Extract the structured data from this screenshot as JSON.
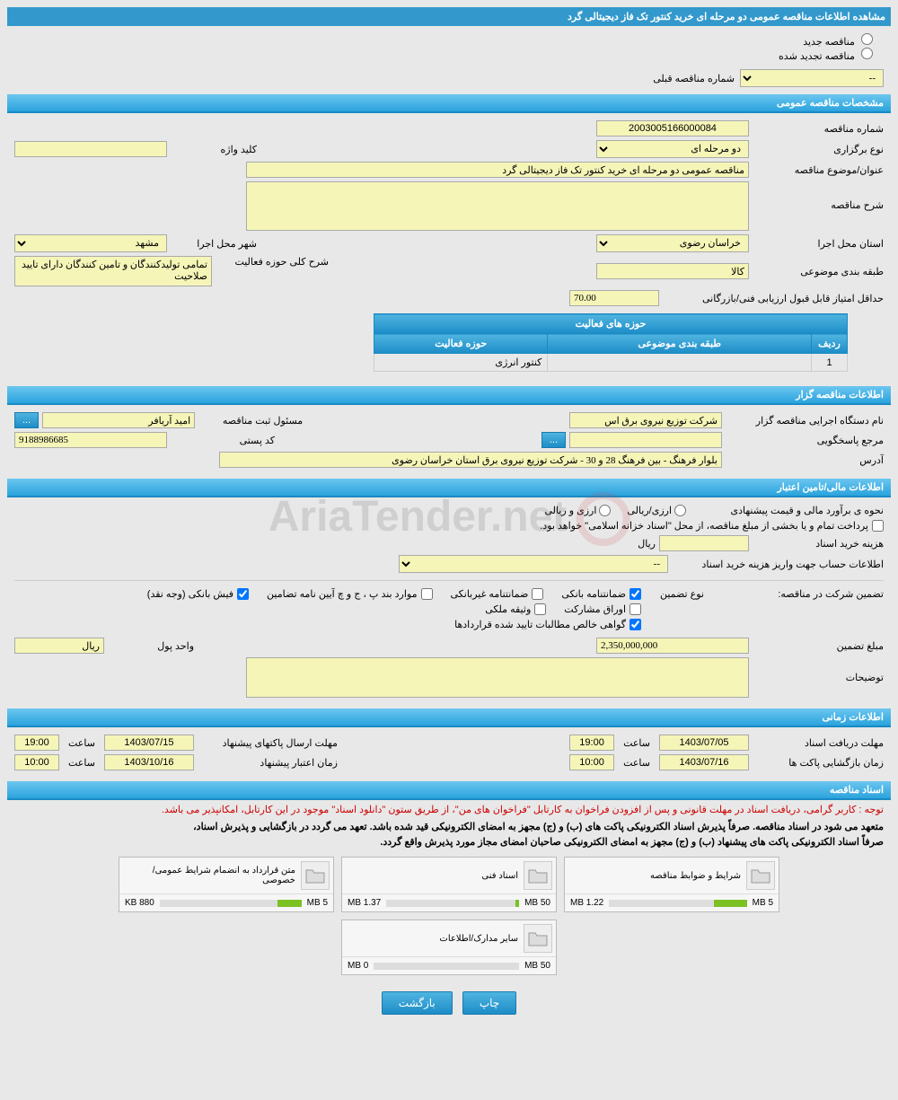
{
  "page_title": "مشاهده اطلاعات مناقصه عمومی دو مرحله ای خرید کنتور تک فاز دیجیتالی گرد",
  "radios": {
    "new_tender": "مناقصه جدید",
    "renewed_tender": "مناقصه تجدید شده"
  },
  "prev_select": {
    "label": "شماره مناقصه قبلی",
    "value": "--"
  },
  "sections": {
    "general": "مشخصات مناقصه عمومی",
    "organizer": "اطلاعات مناقصه گزار",
    "financial": "اطلاعات مالی/تامین اعتبار",
    "timing": "اطلاعات زمانی",
    "docs": "اسناد مناقصه"
  },
  "general": {
    "tender_no_label": "شماره مناقصه",
    "tender_no": "2003005166000084",
    "type_label": "نوع برگزاری",
    "type_value": "دو مرحله ای",
    "keyword_label": "کلید واژه",
    "keyword_value": "",
    "subject_label": "عنوان/موضوع مناقصه",
    "subject_value": "مناقصه عمومی دو مرحله ای خرید کنتور تک فاز دیجیتالی گرد",
    "desc_label": "شرح مناقصه",
    "desc_value": "",
    "province_label": "استان محل اجرا",
    "province_value": "خراسان رضوی",
    "city_label": "شهر محل اجرا",
    "city_value": "مشهد",
    "category_label": "طبقه بندی موضوعی",
    "category_value": "کالا",
    "scope_desc_label": "شرح کلی حوزه فعالیت",
    "scope_desc_value": "تمامی تولیدکنندگان و تامین کنندگان دارای تایید صلاحیت",
    "min_score_label": "حداقل امتیاز قابل قبول ارزیابی فنی/بازرگانی",
    "min_score_value": "70.00"
  },
  "activity_table": {
    "header": "حوزه های فعالیت",
    "col_row": "ردیف",
    "col_category": "طبقه بندی موضوعی",
    "col_scope": "حوزه فعالیت",
    "rows": [
      {
        "idx": "1",
        "category": "",
        "scope": "کنتور انرژی"
      }
    ]
  },
  "organizer": {
    "org_label": "نام دستگاه اجرایی مناقصه گزار",
    "org_value": "شرکت توزیع نیروی برق اس",
    "responsible_label": "مسئول ثبت مناقصه",
    "responsible_value": "امید آریافر",
    "dots": "...",
    "ref_label": "مرجع پاسخگویی",
    "ref_value": "",
    "postal_label": "کد پستی",
    "postal_value": "9188986685",
    "address_label": "آدرس",
    "address_value": "بلوار فرهنگ - بین فرهنگ 28 و 30 - شرکت توزیع نیروی برق استان خراسان رضوی"
  },
  "financial": {
    "estimate_label": "نحوه ی برآورد مالی و قیمت پیشنهادی",
    "estimate_opt1": "ارزی/ریالی",
    "estimate_opt2": "ارزی و ریالی",
    "treasury_note": "پرداخت تمام و یا بخشی از مبلغ مناقصه، از محل \"اسناد خزانه اسلامی\" خواهد بود.",
    "doc_cost_label": "هزینه خرید اسناد",
    "doc_cost_value": "",
    "doc_cost_unit": "ریال",
    "account_info_label": "اطلاعات حساب جهت واریز هزینه خرید اسناد",
    "account_info_value": "--",
    "guarantee_label": "تضمین شرکت در مناقصه:",
    "guarantee_type_label": "نوع تضمین",
    "guarantee_types": {
      "bank": "ضمانتنامه بانکی",
      "nonbank": "ضمانتنامه غیربانکی",
      "bond": "موارد بند پ ، ج و چ آیین نامه تضامین",
      "cash": "فیش بانکی (وجه نقد)",
      "securities": "اوراق مشارکت",
      "property": "وثیقه ملکی",
      "cert": "گواهی خالص مطالبات تایید شده قراردادها"
    },
    "amount_label": "مبلغ تضمین",
    "amount_value": "2,350,000,000",
    "unit_label": "واحد پول",
    "unit_value": "ریال",
    "notes_label": "توضیحات",
    "notes_value": ""
  },
  "timing": {
    "receive_label": "مهلت دریافت اسناد",
    "receive_date": "1403/07/05",
    "receive_time": "19:00",
    "send_label": "مهلت ارسال پاکتهای پیشنهاد",
    "send_date": "1403/07/15",
    "send_time": "19:00",
    "open_label": "زمان بازگشایی پاکت ها",
    "open_date": "1403/07/16",
    "open_time": "10:00",
    "validity_label": "زمان اعتبار پیشنهاد",
    "validity_date": "1403/10/16",
    "validity_time": "10:00",
    "time_label": "ساعت"
  },
  "docs": {
    "note_red": "توجه : کاربر گرامی، دریافت اسناد در مهلت قانونی و پس از افزودن فراخوان به کارتابل \"فراخوان های من\"، از طریق ستون \"دانلود اسناد\" موجود در این کارتابل، امکانپذیر می باشد.",
    "note_bold1": "متعهد می شود در اسناد مناقصه. صرفاً پذیرش اسناد الکترونیکی پاکت های (ب) و (ج) مجهز به امضای الکترونیکی قید شده باشد. تعهد می گردد در بازگشایی و پذیرش اسناد،",
    "note_bold2": "صرفاً اسناد الکترونیکی پاکت های پیشنهاد (ب) و (ج) مجهز به امضای الکترونیکی صاحبان امضای مجاز مورد پذیرش واقع گردد.",
    "cards": [
      {
        "title": "شرایط و ضوابط مناقصه",
        "used": "1.22 MB",
        "total": "5 MB",
        "pct": 24
      },
      {
        "title": "اسناد فنی",
        "used": "1.37 MB",
        "total": "50 MB",
        "pct": 3
      },
      {
        "title": "متن قرارداد به انضمام شرایط عمومی/خصوصی",
        "used": "880 KB",
        "total": "5 MB",
        "pct": 17
      },
      {
        "title": "سایر مدارک/اطلاعات",
        "used": "0 MB",
        "total": "50 MB",
        "pct": 0
      }
    ]
  },
  "buttons": {
    "print": "چاپ",
    "back": "بازگشت"
  },
  "watermark": "AriaTender.net"
}
